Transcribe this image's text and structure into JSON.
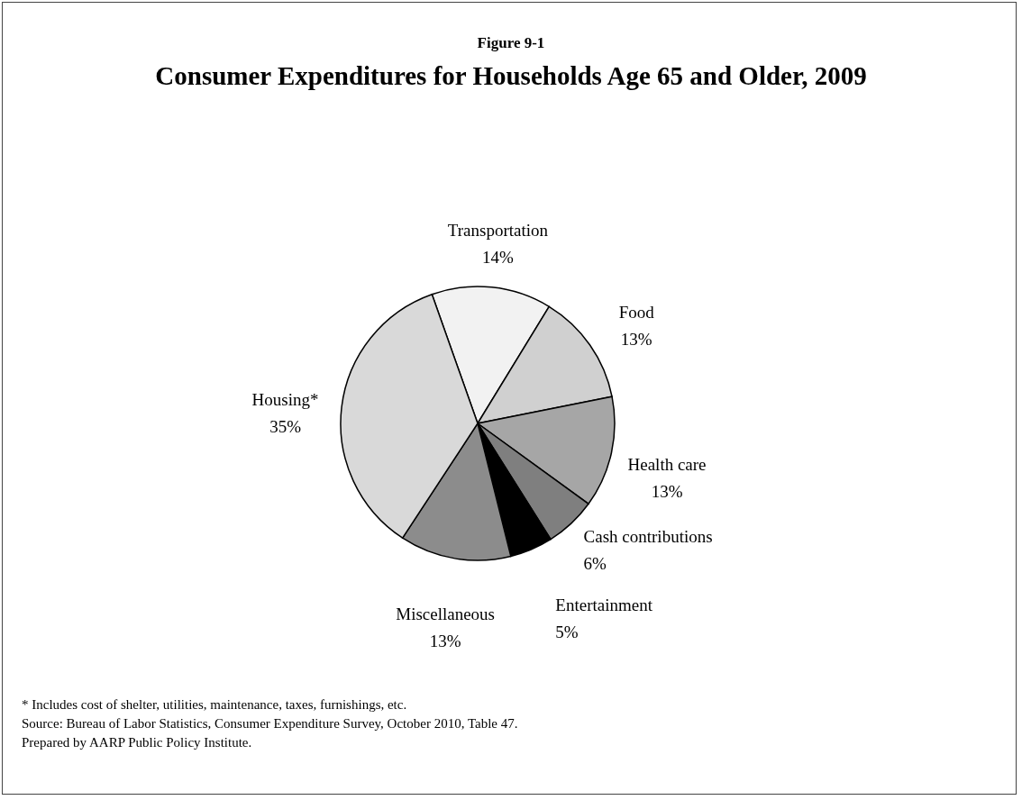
{
  "chart_data": {
    "type": "pie",
    "subtitle": "Figure 9-1",
    "title": "Consumer Expenditures for Households Age 65 and Older, 2009",
    "categories": [
      "Transportation",
      "Food",
      "Health care",
      "Cash contributions",
      "Entertainment",
      "Miscellaneous",
      "Housing*"
    ],
    "values": [
      14,
      13,
      13,
      6,
      5,
      13,
      35
    ],
    "value_labels": [
      "14%",
      "13%",
      "13%",
      "6%",
      "5%",
      "13%",
      "35%"
    ],
    "colors": [
      "#f2f2f2",
      "#d0d0d0",
      "#a6a6a6",
      "#7f7f7f",
      "#000000",
      "#8c8c8c",
      "#d9d9d9"
    ],
    "annotations": [
      "* Includes cost of shelter, utilities, maintenance, taxes, furnishings, etc.",
      "Source: Bureau of Labor Statistics, Consumer Expenditure Survey, October 2010, Table 47.",
      "Prepared by AARP Public Policy Institute."
    ]
  }
}
